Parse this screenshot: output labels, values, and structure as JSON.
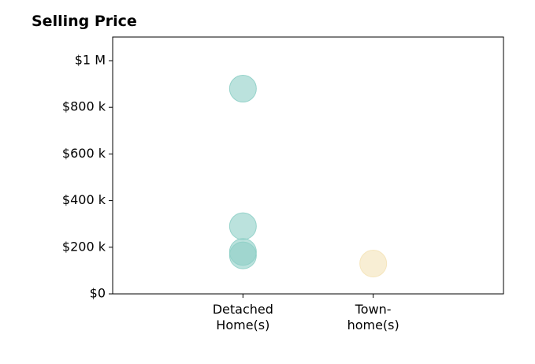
{
  "chart_data": {
    "type": "scatter",
    "title": "Selling Price",
    "categories": [
      [
        "Detached",
        "Home(s)"
      ],
      [
        "Town-",
        "home(s)"
      ]
    ],
    "y_ticks": [
      {
        "value": 0,
        "label": "$0"
      },
      {
        "value": 200000,
        "label": "$200 k"
      },
      {
        "value": 400000,
        "label": "$400 k"
      },
      {
        "value": 600000,
        "label": "$600 k"
      },
      {
        "value": 800000,
        "label": "$800 k"
      },
      {
        "value": 1000000,
        "label": "$1 M"
      }
    ],
    "ylim": [
      0,
      1100000
    ],
    "xlim": [
      -1,
      2
    ],
    "grid": false,
    "series": [
      {
        "category_index": 0,
        "color": "#8ecfc6",
        "values": [
          880000,
          290000,
          180000,
          165000
        ]
      },
      {
        "category_index": 1,
        "color": "#f4e3b8",
        "values": [
          130000
        ]
      }
    ]
  }
}
